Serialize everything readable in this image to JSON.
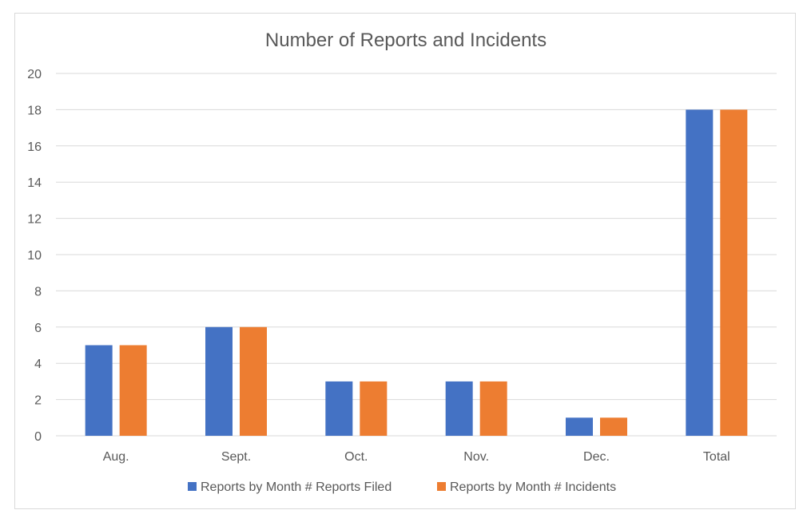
{
  "chart_data": {
    "type": "bar",
    "title": "Number of Reports and Incidents",
    "xlabel": "",
    "ylabel": "",
    "categories": [
      "Aug.",
      "Sept.",
      "Oct.",
      "Nov.",
      "Dec.",
      "Total"
    ],
    "series": [
      {
        "name": "Reports by Month # Reports Filed",
        "color": "#4472C4",
        "values": [
          5,
          6,
          3,
          3,
          1,
          18
        ]
      },
      {
        "name": "Reports by Month # Incidents",
        "color": "#ED7D31",
        "values": [
          5,
          6,
          3,
          3,
          1,
          18
        ]
      }
    ],
    "ylim": [
      0,
      20
    ],
    "yticks": [
      "0",
      "2",
      "4",
      "6",
      "8",
      "10",
      "12",
      "14",
      "16",
      "18",
      "20"
    ],
    "grid": true,
    "legend_position": "bottom"
  }
}
